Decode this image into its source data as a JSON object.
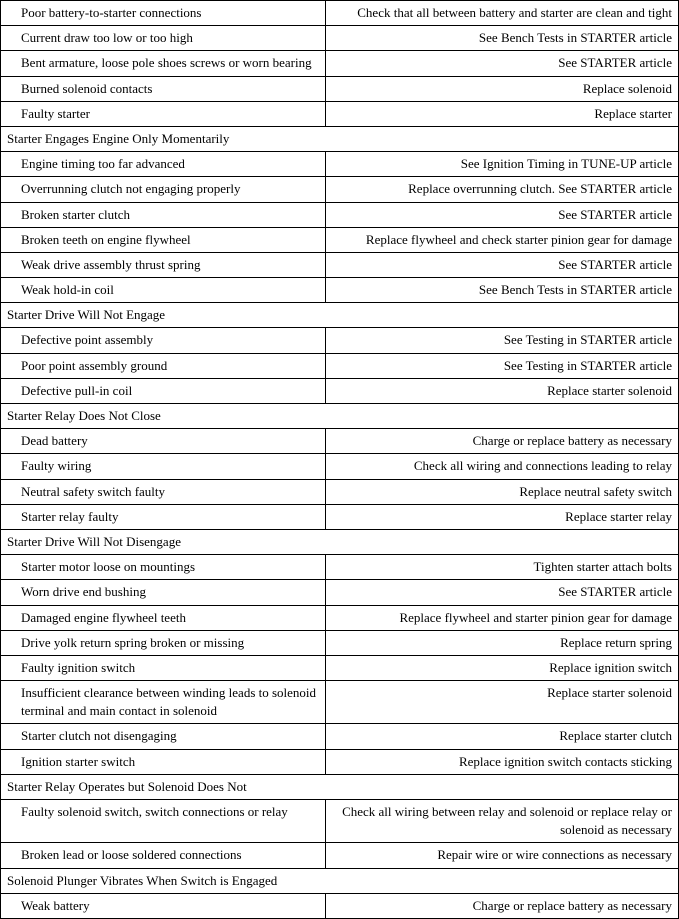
{
  "rows": [
    {
      "type": "item",
      "cause": "Poor battery-to-starter connections",
      "remedy": "Check that all between battery and starter are clean and tight"
    },
    {
      "type": "item",
      "cause": "Current draw too low or too high",
      "remedy": "See Bench Tests in STARTER article"
    },
    {
      "type": "item",
      "cause": "Bent armature, loose pole shoes screws or worn bearing",
      "remedy": "See STARTER article"
    },
    {
      "type": "item",
      "cause": "Burned solenoid contacts",
      "remedy": "Replace solenoid"
    },
    {
      "type": "item",
      "cause": "Faulty starter",
      "remedy": "Replace starter"
    },
    {
      "type": "section",
      "label": "Starter Engages Engine Only Momentarily"
    },
    {
      "type": "item",
      "cause": "Engine timing too far advanced",
      "remedy": "See Ignition Timing in TUNE-UP article"
    },
    {
      "type": "item",
      "cause": "Overrunning clutch not engaging properly",
      "remedy": "Replace overrunning clutch. See STARTER article"
    },
    {
      "type": "item",
      "cause": "Broken starter clutch",
      "remedy": "See STARTER article"
    },
    {
      "type": "item",
      "cause": "Broken teeth on engine flywheel",
      "remedy": "Replace flywheel and check starter pinion gear for damage"
    },
    {
      "type": "item",
      "cause": "Weak drive assembly thrust spring",
      "remedy": "See STARTER article"
    },
    {
      "type": "item",
      "cause": "Weak hold-in coil",
      "remedy": "See Bench Tests in STARTER article"
    },
    {
      "type": "section",
      "label": "Starter Drive Will Not Engage"
    },
    {
      "type": "item",
      "cause": "Defective point assembly",
      "remedy": "See Testing in STARTER article"
    },
    {
      "type": "item",
      "cause": "Poor point assembly ground",
      "remedy": "See Testing in STARTER article"
    },
    {
      "type": "item",
      "cause": "Defective pull-in coil",
      "remedy": "Replace starter solenoid"
    },
    {
      "type": "section",
      "label": "Starter Relay Does Not Close"
    },
    {
      "type": "item",
      "cause": "Dead battery",
      "remedy": "Charge or replace battery as necessary"
    },
    {
      "type": "item",
      "cause": "Faulty wiring",
      "remedy": "Check all wiring and connections leading to relay"
    },
    {
      "type": "item",
      "cause": "Neutral safety switch faulty",
      "remedy": "Replace neutral safety switch"
    },
    {
      "type": "item",
      "cause": "Starter relay faulty",
      "remedy": "Replace starter relay"
    },
    {
      "type": "section",
      "label": "Starter Drive Will Not Disengage"
    },
    {
      "type": "item",
      "cause": "Starter motor loose on mountings",
      "remedy": "Tighten starter attach bolts"
    },
    {
      "type": "item",
      "cause": "Worn drive end bushing",
      "remedy": "See STARTER article"
    },
    {
      "type": "item",
      "cause": "Damaged engine flywheel teeth",
      "remedy": "Replace flywheel and starter pinion gear for damage"
    },
    {
      "type": "item",
      "cause": "Drive yolk return spring broken or missing",
      "remedy": "Replace return spring"
    },
    {
      "type": "item",
      "cause": "Faulty ignition switch",
      "remedy": "Replace ignition switch"
    },
    {
      "type": "item",
      "cause": "Insufficient clearance between winding leads to solenoid terminal and main contact in solenoid",
      "remedy": "Replace starter solenoid"
    },
    {
      "type": "item",
      "cause": "Starter clutch not disengaging",
      "remedy": "Replace starter clutch"
    },
    {
      "type": "item",
      "cause": "Ignition starter switch",
      "remedy": "Replace ignition switch contacts sticking"
    },
    {
      "type": "section",
      "label": "Starter Relay Operates but Solenoid Does Not"
    },
    {
      "type": "item",
      "cause": "Faulty solenoid switch, switch connections or relay",
      "remedy": "Check all wiring between relay and solenoid or replace relay or solenoid as necessary"
    },
    {
      "type": "item",
      "cause": "Broken lead or loose soldered connections",
      "remedy": "Repair wire or wire connections as necessary"
    },
    {
      "type": "section",
      "label": "Solenoid Plunger Vibrates When Switch is Engaged"
    },
    {
      "type": "item",
      "cause": "Weak battery",
      "remedy": "Charge or replace battery as necessary"
    }
  ]
}
